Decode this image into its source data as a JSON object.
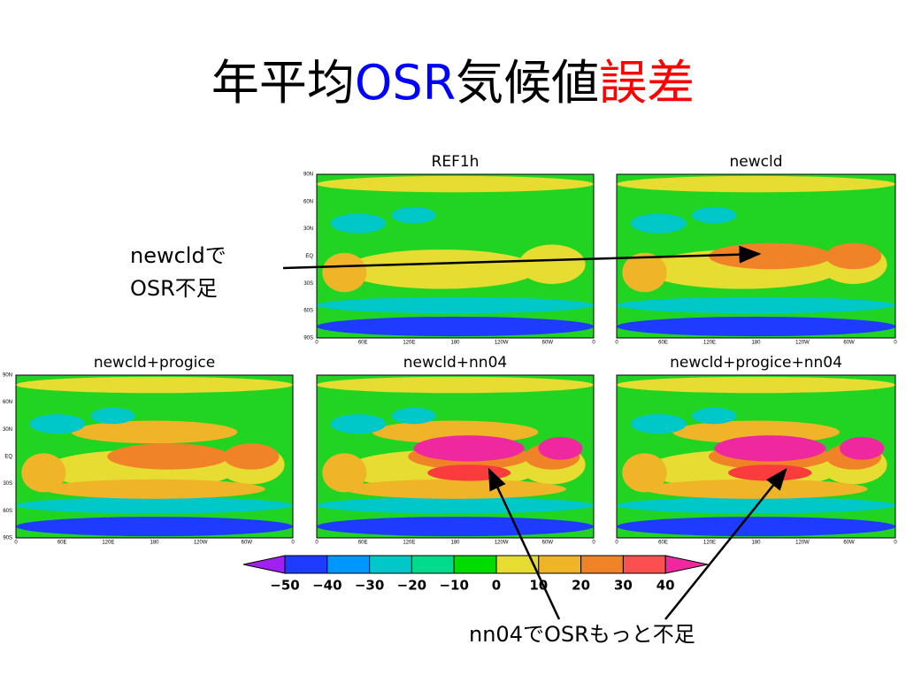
{
  "title": {
    "parts": [
      {
        "text": "年平均",
        "color": "#000000"
      },
      {
        "text": "OSR",
        "color": "#0000ff"
      },
      {
        "text": "気候値",
        "color": "#000000"
      },
      {
        "text": "誤差",
        "color": "#ff0000"
      }
    ]
  },
  "panels": [
    {
      "title": "REF1h"
    },
    {
      "title": "newcld"
    },
    {
      "title": "newcld+progice"
    },
    {
      "title": "newcld+nn04"
    },
    {
      "title": "newcld+progice+nn04"
    }
  ],
  "lat_labels": [
    "90N",
    "60N",
    "30N",
    "EQ",
    "30S",
    "60S",
    "90S"
  ],
  "lon_labels": [
    "0",
    "60E",
    "120E",
    "180",
    "120W",
    "60W",
    "0"
  ],
  "colorbar": {
    "labels": [
      "−50",
      "−40",
      "−30",
      "−20",
      "−10",
      "0",
      "10",
      "20",
      "30",
      "40"
    ]
  },
  "annotations": {
    "top": [
      "newcldで",
      "OSR不足"
    ],
    "bottom": "nn04でOSRもっと不足"
  }
}
